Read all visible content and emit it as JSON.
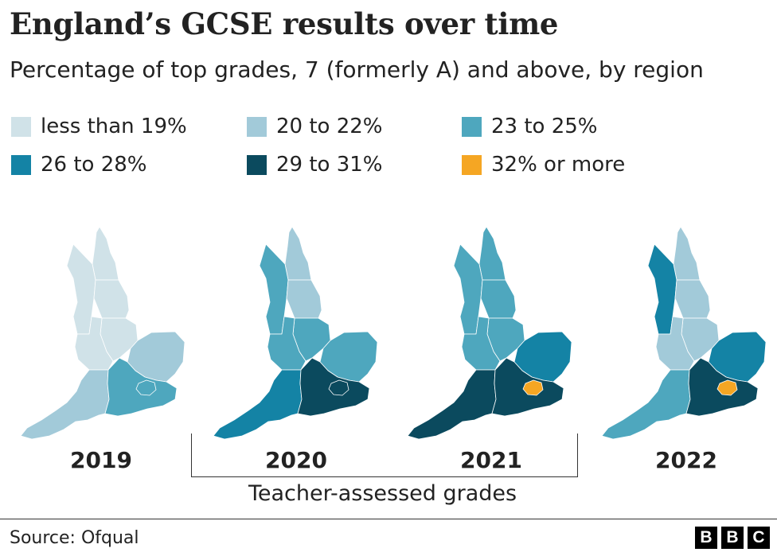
{
  "title": "England’s GCSE results over time",
  "subtitle": "Percentage of top grades, 7 (formerly A) and above, by region",
  "legend": [
    {
      "label": "less than 19%",
      "color": "#d0e2e8"
    },
    {
      "label": "20 to 22%",
      "color": "#a2cad9"
    },
    {
      "label": "23 to 25%",
      "color": "#4ea7be"
    },
    {
      "label": "26 to 28%",
      "color": "#1483a5"
    },
    {
      "label": "29 to 31%",
      "color": "#0b4a5e"
    },
    {
      "label": "32% or more",
      "color": "#f5a623"
    }
  ],
  "maps": [
    {
      "year": "2019",
      "regions": {
        "north_east": 0,
        "north_west": 0,
        "yorkshire": 0,
        "east_midlands": 0,
        "west_midlands": 0,
        "east": 1,
        "south_west": 1,
        "south_east": 2,
        "london": 2
      }
    },
    {
      "year": "2020",
      "regions": {
        "north_east": 1,
        "north_west": 2,
        "yorkshire": 1,
        "east_midlands": 2,
        "west_midlands": 2,
        "east": 2,
        "south_west": 3,
        "south_east": 4,
        "london": 4
      }
    },
    {
      "year": "2021",
      "regions": {
        "north_east": 2,
        "north_west": 2,
        "yorkshire": 2,
        "east_midlands": 2,
        "west_midlands": 2,
        "east": 3,
        "south_west": 4,
        "south_east": 4,
        "london": 5
      }
    },
    {
      "year": "2022",
      "regions": {
        "north_east": 1,
        "north_west": 3,
        "yorkshire": 1,
        "east_midlands": 1,
        "west_midlands": 1,
        "east": 3,
        "south_west": 2,
        "south_east": 4,
        "london": 5
      }
    }
  ],
  "note": "Teacher-assessed grades",
  "source": "Source: Ofqual",
  "logo_letters": [
    "B",
    "B",
    "C"
  ]
}
